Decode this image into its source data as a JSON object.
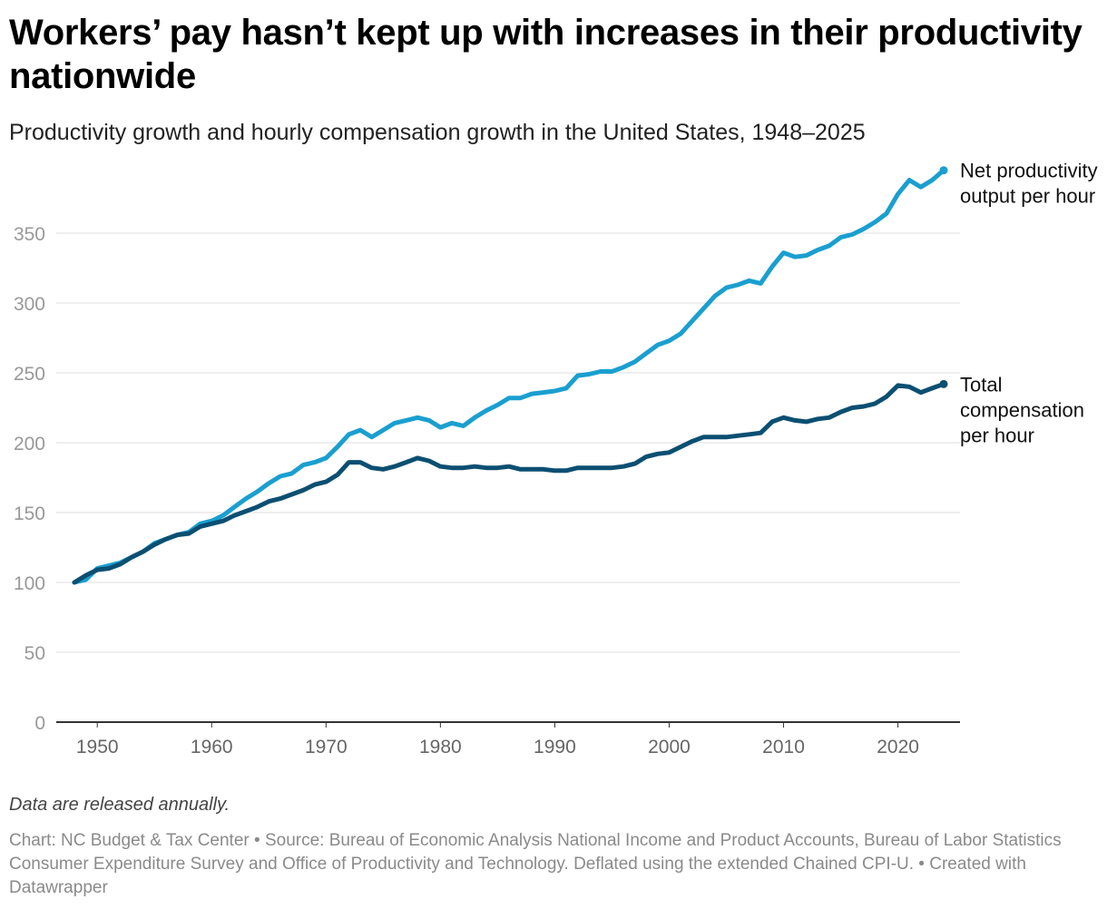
{
  "title": "Workers’ pay hasn’t kept up with increases in their productivity nationwide",
  "subtitle": "Productivity growth and hourly compensation growth in the United States, 1948–2025",
  "notes": "Data are released annually.",
  "footer": {
    "chart_credit": "Chart: NC Budget & Tax Center",
    "source": "Source: Bureau of Economic Analysis National Income and Product Accounts, Bureau of Labor Statistics Consumer Expenditure Survey and Office of Productivity and Technology. Deflated using the extended Chained CPI-U.",
    "tool": "Created with Datawrapper",
    "separator": " • "
  },
  "colors": {
    "productivity": "#1a9fd0",
    "compensation": "#0b4f72",
    "grid": "#dddddd",
    "axis": "#333333",
    "tick_text": "#999999"
  },
  "chart_data": {
    "type": "line",
    "xlim": [
      1948,
      2024
    ],
    "ylim": [
      0,
      400
    ],
    "yticks": [
      0,
      50,
      100,
      150,
      200,
      250,
      300,
      350
    ],
    "xticks": [
      1950,
      1960,
      1970,
      1980,
      1990,
      2000,
      2010,
      2020
    ],
    "grid": true,
    "legend_placement": "direct labels at right end of lines",
    "x": [
      1948,
      1949,
      1950,
      1951,
      1952,
      1953,
      1954,
      1955,
      1956,
      1957,
      1958,
      1959,
      1960,
      1961,
      1962,
      1963,
      1964,
      1965,
      1966,
      1967,
      1968,
      1969,
      1970,
      1971,
      1972,
      1973,
      1974,
      1975,
      1976,
      1977,
      1978,
      1979,
      1980,
      1981,
      1982,
      1983,
      1984,
      1985,
      1986,
      1987,
      1988,
      1989,
      1990,
      1991,
      1992,
      1993,
      1994,
      1995,
      1996,
      1997,
      1998,
      1999,
      2000,
      2001,
      2002,
      2003,
      2004,
      2005,
      2006,
      2007,
      2008,
      2009,
      2010,
      2011,
      2012,
      2013,
      2014,
      2015,
      2016,
      2017,
      2018,
      2019,
      2020,
      2021,
      2022,
      2023,
      2024
    ],
    "series": [
      {
        "name": "Net productivity output per hour",
        "color_key": "productivity",
        "values": [
          100,
          102,
          110,
          112,
          114,
          118,
          122,
          128,
          131,
          134,
          136,
          142,
          144,
          148,
          154,
          160,
          165,
          171,
          176,
          178,
          184,
          186,
          189,
          197,
          206,
          209,
          204,
          209,
          214,
          216,
          218,
          216,
          211,
          214,
          212,
          218,
          223,
          227,
          232,
          232,
          235,
          236,
          237,
          239,
          248,
          249,
          251,
          251,
          254,
          258,
          264,
          270,
          273,
          278,
          287,
          296,
          305,
          311,
          313,
          316,
          314,
          326,
          336,
          333,
          334,
          338,
          341,
          347,
          349,
          353,
          358,
          364,
          378,
          388,
          383,
          388,
          395
        ]
      },
      {
        "name": "Total compensation per hour",
        "color_key": "compensation",
        "values": [
          100,
          105,
          109,
          110,
          113,
          118,
          122,
          127,
          131,
          134,
          135,
          140,
          142,
          144,
          148,
          151,
          154,
          158,
          160,
          163,
          166,
          170,
          172,
          177,
          186,
          186,
          182,
          181,
          183,
          186,
          189,
          187,
          183,
          182,
          182,
          183,
          182,
          182,
          183,
          181,
          181,
          181,
          180,
          180,
          182,
          182,
          182,
          182,
          183,
          185,
          190,
          192,
          193,
          197,
          201,
          204,
          204,
          204,
          205,
          206,
          207,
          215,
          218,
          216,
          215,
          217,
          218,
          222,
          225,
          226,
          228,
          233,
          241,
          240,
          236,
          239,
          242
        ]
      }
    ]
  }
}
